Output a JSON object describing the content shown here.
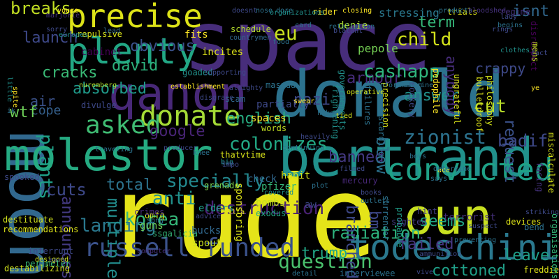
{
  "words": [
    {
      "text": "space",
      "color": "#472d7b",
      "v": false
    },
    {
      "text": "rude",
      "color": "#e5e419",
      "v": false
    },
    {
      "text": "moon",
      "color": "#31688e",
      "v": true
    },
    {
      "text": "donald",
      "color": "#2c728e",
      "v": false
    },
    {
      "text": "bertrand",
      "color": "#21918c",
      "v": false
    },
    {
      "text": "molestor",
      "color": "#25ab82",
      "v": false
    },
    {
      "text": "qanon",
      "color": "#482878",
      "v": false
    },
    {
      "text": "oun",
      "color": "#c8e020",
      "v": false
    },
    {
      "text": "todeschini",
      "color": "#2a788e",
      "v": false
    },
    {
      "text": "convicted",
      "color": "#1fa187",
      "v": false
    },
    {
      "text": "precise",
      "color": "#dde318",
      "v": false
    },
    {
      "text": "plenty",
      "color": "#22a785",
      "v": false
    },
    {
      "text": "russell",
      "color": "#3b528b",
      "v": false
    },
    {
      "text": "funded",
      "color": "#3b528b",
      "v": false
    },
    {
      "text": "donate",
      "color": "#a5db36",
      "v": false
    },
    {
      "text": "asked",
      "color": "#3fbc73",
      "v": false
    },
    {
      "text": "breaks",
      "color": "#c2df23",
      "v": false
    },
    {
      "text": "question",
      "color": "#4ac16d",
      "v": false
    },
    {
      "text": "destruction",
      "color": "#482173",
      "v": false
    },
    {
      "text": "radiation",
      "color": "#2db27d",
      "v": false
    },
    {
      "text": "specially",
      "color": "#23888e",
      "v": false
    },
    {
      "text": "korea",
      "color": "#35b779",
      "v": false
    },
    {
      "text": "google",
      "color": "#482475",
      "v": false
    },
    {
      "text": "seems",
      "color": "#21a685",
      "v": false
    },
    {
      "text": "failed",
      "color": "#453781",
      "v": false
    },
    {
      "text": "landing",
      "color": "#2a788e",
      "v": false
    },
    {
      "text": "anti",
      "color": "#21918c",
      "v": false
    },
    {
      "text": "multiple",
      "color": "#228d8d",
      "v": true
    },
    {
      "text": "announces",
      "color": "#443a83",
      "v": true
    },
    {
      "text": "total",
      "color": "#2c738e",
      "v": false
    },
    {
      "text": "david",
      "color": "#2db27d",
      "v": false
    },
    {
      "text": "obvious",
      "color": "#3b528b",
      "v": false
    },
    {
      "text": "launch",
      "color": "#3e4989",
      "v": false
    },
    {
      "text": "cut",
      "color": "#b8de29",
      "v": false
    },
    {
      "text": "request",
      "color": "#3b528b",
      "v": true
    },
    {
      "text": "child",
      "color": "#d2e21b",
      "v": false
    },
    {
      "text": "term",
      "color": "#35b779",
      "v": false
    },
    {
      "text": "eu",
      "color": "#c8e020",
      "v": false
    },
    {
      "text": "isnt",
      "color": "#31688e",
      "v": false
    },
    {
      "text": "nazi",
      "color": "#3e4a89",
      "v": false
    },
    {
      "text": "armour",
      "color": "#472c7a",
      "v": false
    },
    {
      "text": "answer",
      "color": "#21918c",
      "v": false
    },
    {
      "text": "zionist",
      "color": "#2c728e",
      "v": false
    },
    {
      "text": "badif",
      "color": "#3e4989",
      "v": false
    },
    {
      "text": "banned",
      "color": "#443983",
      "v": false
    },
    {
      "text": "blow",
      "color": "#2c728e",
      "v": true
    },
    {
      "text": "bm",
      "color": "#3e4989",
      "v": true
    },
    {
      "text": "leave",
      "color": "#1f9e89",
      "v": false
    },
    {
      "text": "trump",
      "color": "#21a685",
      "v": false
    },
    {
      "text": "branched",
      "color": "#3e4989",
      "v": true
    },
    {
      "text": "cottoned",
      "color": "#1f9f88",
      "v": false
    },
    {
      "text": "colonizes",
      "color": "#22a884",
      "v": false
    },
    {
      "text": "english",
      "color": "#27ad81",
      "v": false
    },
    {
      "text": "plants",
      "color": "#1fa188",
      "v": true
    },
    {
      "text": "absorbed",
      "color": "#1f9a8a",
      "v": false
    },
    {
      "text": "cracks",
      "color": "#3aba76",
      "v": false
    },
    {
      "text": "air",
      "color": "#3b528b",
      "v": false
    },
    {
      "text": "cope",
      "color": "#35608d",
      "v": false
    },
    {
      "text": "cuts",
      "color": "#3e4989",
      "v": false
    },
    {
      "text": "wtf",
      "color": "#6ece58",
      "v": false
    },
    {
      "text": "cashapp",
      "color": "#2fb47c",
      "v": false
    },
    {
      "text": "anybody",
      "color": "#472d7b",
      "v": true
    },
    {
      "text": "crappy",
      "color": "#3e4989",
      "v": false
    },
    {
      "text": "denie",
      "color": "#addc30",
      "v": false
    },
    {
      "text": "stressing",
      "color": "#2a788e",
      "v": false
    },
    {
      "text": "trials",
      "color": "#dde318",
      "v": false
    },
    {
      "text": "regime",
      "color": "#46327e",
      "v": false
    },
    {
      "text": "pepole",
      "color": "#75d054",
      "v": false
    },
    {
      "text": "rider",
      "color": "#fde725",
      "v": false
    },
    {
      "text": "schedule",
      "color": "#b5de2b",
      "v": false
    },
    {
      "text": "repulsive",
      "color": "#d8e219",
      "v": false
    },
    {
      "text": "fits",
      "color": "#fde725",
      "v": false
    },
    {
      "text": "incites",
      "color": "#dde318",
      "v": false
    },
    {
      "text": "goaded",
      "color": "#21918c",
      "v": false
    },
    {
      "text": "divulge",
      "color": "#3e4989",
      "v": false
    },
    {
      "text": "nuremberg",
      "color": "#addc30",
      "v": false
    },
    {
      "text": "cabinet",
      "color": "#440154",
      "v": false
    },
    {
      "text": "partially",
      "color": "#3e4989",
      "v": false
    },
    {
      "text": "spaces",
      "color": "#fde725",
      "v": false
    },
    {
      "text": "words",
      "color": "#c2df23",
      "v": false
    },
    {
      "text": "thatvtime",
      "color": "#d8e219",
      "v": false
    },
    {
      "text": "scam",
      "color": "#31688e",
      "v": false
    },
    {
      "text": "masada",
      "color": "#2c728e",
      "v": false
    },
    {
      "text": "habit",
      "color": "#d2e21b",
      "v": false
    },
    {
      "text": "check",
      "color": "#31688e",
      "v": false
    },
    {
      "text": "pfizer",
      "color": "#35b779",
      "v": false
    },
    {
      "text": "grenade",
      "color": "#7ad151",
      "v": false
    },
    {
      "text": "elders",
      "color": "#1f9e89",
      "v": false
    },
    {
      "text": "omfg",
      "color": "#d8e219",
      "v": false
    },
    {
      "text": "crimes",
      "color": "#472d7b",
      "v": false
    },
    {
      "text": "guns",
      "color": "#6ece58",
      "v": false
    },
    {
      "text": "ssgalicia",
      "color": "#35b779",
      "v": false
    },
    {
      "text": "bucks",
      "color": "#31688e",
      "v": false
    },
    {
      "text": "spout",
      "color": "#c8e020",
      "v": false
    },
    {
      "text": "bombs",
      "color": "#c2df23",
      "v": false
    },
    {
      "text": "exodus",
      "color": "#22a884",
      "v": false
    },
    {
      "text": "aw",
      "color": "#3e4989",
      "v": false
    },
    {
      "text": "mercury",
      "color": "#482878",
      "v": false
    },
    {
      "text": "probable",
      "color": "#1f9e89",
      "v": true
    },
    {
      "text": "sighted",
      "color": "#433e85",
      "v": false
    },
    {
      "text": "hint",
      "color": "#433e85",
      "v": false
    },
    {
      "text": "terrorist",
      "color": "#46307e",
      "v": false
    },
    {
      "text": "devices",
      "color": "#dde318",
      "v": false
    },
    {
      "text": "freddie",
      "color": "#dde318",
      "v": false
    },
    {
      "text": "bend",
      "color": "#2c728e",
      "v": false
    },
    {
      "text": "destituate",
      "color": "#d2e21b",
      "v": false
    },
    {
      "text": "recommendations",
      "color": "#dde318",
      "v": false
    },
    {
      "text": "destabilizing",
      "color": "#d2e21b",
      "v": false
    },
    {
      "text": "interrupt",
      "color": "#3e4989",
      "v": false
    },
    {
      "text": "perimeter",
      "color": "#35b779",
      "v": false
    },
    {
      "text": "spooked",
      "color": "#3e4989",
      "v": false
    },
    {
      "text": "interviewee",
      "color": "#2c728e",
      "v": false
    },
    {
      "text": "sponsoring",
      "color": "#dde318",
      "v": true
    },
    {
      "text": "frightening",
      "color": "#21918c",
      "v": true
    },
    {
      "text": "failures",
      "color": "#2c728e",
      "v": true
    },
    {
      "text": "precision",
      "color": "#d8e219",
      "v": true
    },
    {
      "text": "discarding",
      "color": "#2c728e",
      "v": true
    },
    {
      "text": "mockery",
      "color": "#3e4989",
      "v": true
    },
    {
      "text": "pedophile",
      "color": "#fde725",
      "v": true
    },
    {
      "text": "ungrateful",
      "color": "#d8e219",
      "v": true
    },
    {
      "text": "philosophy",
      "color": "#d2e21b",
      "v": true
    },
    {
      "text": "disrespect",
      "color": "#440154",
      "v": true
    },
    {
      "text": "miscalculate",
      "color": "#d8e219",
      "v": true
    },
    {
      "text": "organisations",
      "color": "#35b779",
      "v": true
    },
    {
      "text": "governements",
      "color": "#21918c",
      "v": true
    },
    {
      "text": "bulletproof",
      "color": "#dde318",
      "v": true
    },
    {
      "text": "surrender",
      "color": "#2c728e",
      "v": true
    },
    {
      "text": "mens",
      "color": "#c8e020",
      "v": true
    },
    {
      "text": "facing",
      "color": "#46327e",
      "v": true
    },
    {
      "text": "fact",
      "color": "#3e4989",
      "v": false
    },
    {
      "text": "ik",
      "color": "#2c728e",
      "v": false
    },
    {
      "text": "lead",
      "color": "#31688e",
      "v": false
    },
    {
      "text": "food",
      "color": "#2c728e",
      "v": false
    },
    {
      "text": "countrymen",
      "color": "#31688e",
      "v": false
    },
    {
      "text": "europes",
      "color": "#21918c",
      "v": false
    },
    {
      "text": "marjorie",
      "color": "#46327e",
      "v": false
    },
    {
      "text": "sorry",
      "color": "#3e4989",
      "v": false
    },
    {
      "text": "youre",
      "color": "#fde725",
      "v": false
    },
    {
      "text": "doesnt",
      "color": "#3e4989",
      "v": false
    },
    {
      "text": "nose",
      "color": "#2c728e",
      "v": false
    },
    {
      "text": "dore",
      "color": "#2c728e",
      "v": false
    },
    {
      "text": "organizations",
      "color": "#21918c",
      "v": false
    },
    {
      "text": "retaliation",
      "color": "#2c728e",
      "v": false
    },
    {
      "text": "closing",
      "color": "#fde725",
      "v": false
    },
    {
      "text": "products",
      "color": "#2c728e",
      "v": false
    },
    {
      "text": "bloodshed",
      "color": "#46327e",
      "v": false
    },
    {
      "text": "rings",
      "color": "#3e4989",
      "v": false
    },
    {
      "text": "lady",
      "color": "#3e4989",
      "v": false
    },
    {
      "text": "begins",
      "color": "#2c728e",
      "v": false
    },
    {
      "text": "clothes",
      "color": "#21918c",
      "v": false
    },
    {
      "text": "blatant",
      "color": "#3e4989",
      "v": false
    },
    {
      "text": "card",
      "color": "#2c728e",
      "v": false
    },
    {
      "text": "operative",
      "color": "#d2e21b",
      "v": false
    },
    {
      "text": "information",
      "color": "#2c728e",
      "v": false
    },
    {
      "text": "vaccine",
      "color": "#2c728e",
      "v": false
    },
    {
      "text": "supporting",
      "color": "#3e4989",
      "v": false
    },
    {
      "text": "disgrace",
      "color": "#3e4989",
      "v": false
    },
    {
      "text": "establishment",
      "color": "#fde725",
      "v": false
    },
    {
      "text": "almighty",
      "color": "#3e4989",
      "v": false
    },
    {
      "text": "swear",
      "color": "#fde725",
      "v": false
    },
    {
      "text": "nukes",
      "color": "#2c728e",
      "v": false
    },
    {
      "text": "tied",
      "color": "#d2e21b",
      "v": false
    },
    {
      "text": "heavily",
      "color": "#3e4989",
      "v": false
    },
    {
      "text": "continuing",
      "color": "#2c728e",
      "v": false
    },
    {
      "text": "producer",
      "color": "#3e4989",
      "v": false
    },
    {
      "text": "knee",
      "color": "#2c728e",
      "v": false
    },
    {
      "text": "bio",
      "color": "#21918c",
      "v": false
    },
    {
      "text": "song",
      "color": "#2c728e",
      "v": false
    },
    {
      "text": "advice",
      "color": "#3e4989",
      "v": false
    },
    {
      "text": "villa",
      "color": "#dde318",
      "v": false
    },
    {
      "text": "plot",
      "color": "#2c728e",
      "v": false
    },
    {
      "text": "covered",
      "color": "#21918c",
      "v": false
    },
    {
      "text": "books",
      "color": "#3e4989",
      "v": false
    },
    {
      "text": "outlets",
      "color": "#2c728e",
      "v": false
    },
    {
      "text": "computer",
      "color": "#46327e",
      "v": false
    },
    {
      "text": "designed",
      "color": "#d2e21b",
      "v": false
    },
    {
      "text": "detail",
      "color": "#2c728e",
      "v": false
    },
    {
      "text": "vive",
      "color": "#3e4989",
      "v": false
    },
    {
      "text": "suspect",
      "color": "#3e4989",
      "v": false
    },
    {
      "text": "preventing",
      "color": "#2c728e",
      "v": false
    },
    {
      "text": "ammunition",
      "color": "#3e4989",
      "v": false
    },
    {
      "text": "ears",
      "color": "#3e4989",
      "v": false
    },
    {
      "text": "traveling",
      "color": "#2c728e",
      "v": false
    },
    {
      "text": "little",
      "color": "#21918c",
      "v": true
    },
    {
      "text": "spite",
      "color": "#fde725",
      "v": true
    },
    {
      "text": "filmed",
      "color": "#3e4989",
      "v": false
    },
    {
      "text": "boys",
      "color": "#2c728e",
      "v": false
    },
    {
      "text": "says",
      "color": "#2c728e",
      "v": false
    },
    {
      "text": "ace",
      "color": "#fde725",
      "v": false
    },
    {
      "text": "determine",
      "color": "#2c728e",
      "v": false
    },
    {
      "text": "striking",
      "color": "#3e4989",
      "v": false
    },
    {
      "text": "ye",
      "color": "#fde725",
      "v": false
    },
    {
      "text": "sup",
      "color": "#2c728e",
      "v": false
    },
    {
      "text": "impo",
      "color": "#3e4989",
      "v": false
    }
  ]
}
